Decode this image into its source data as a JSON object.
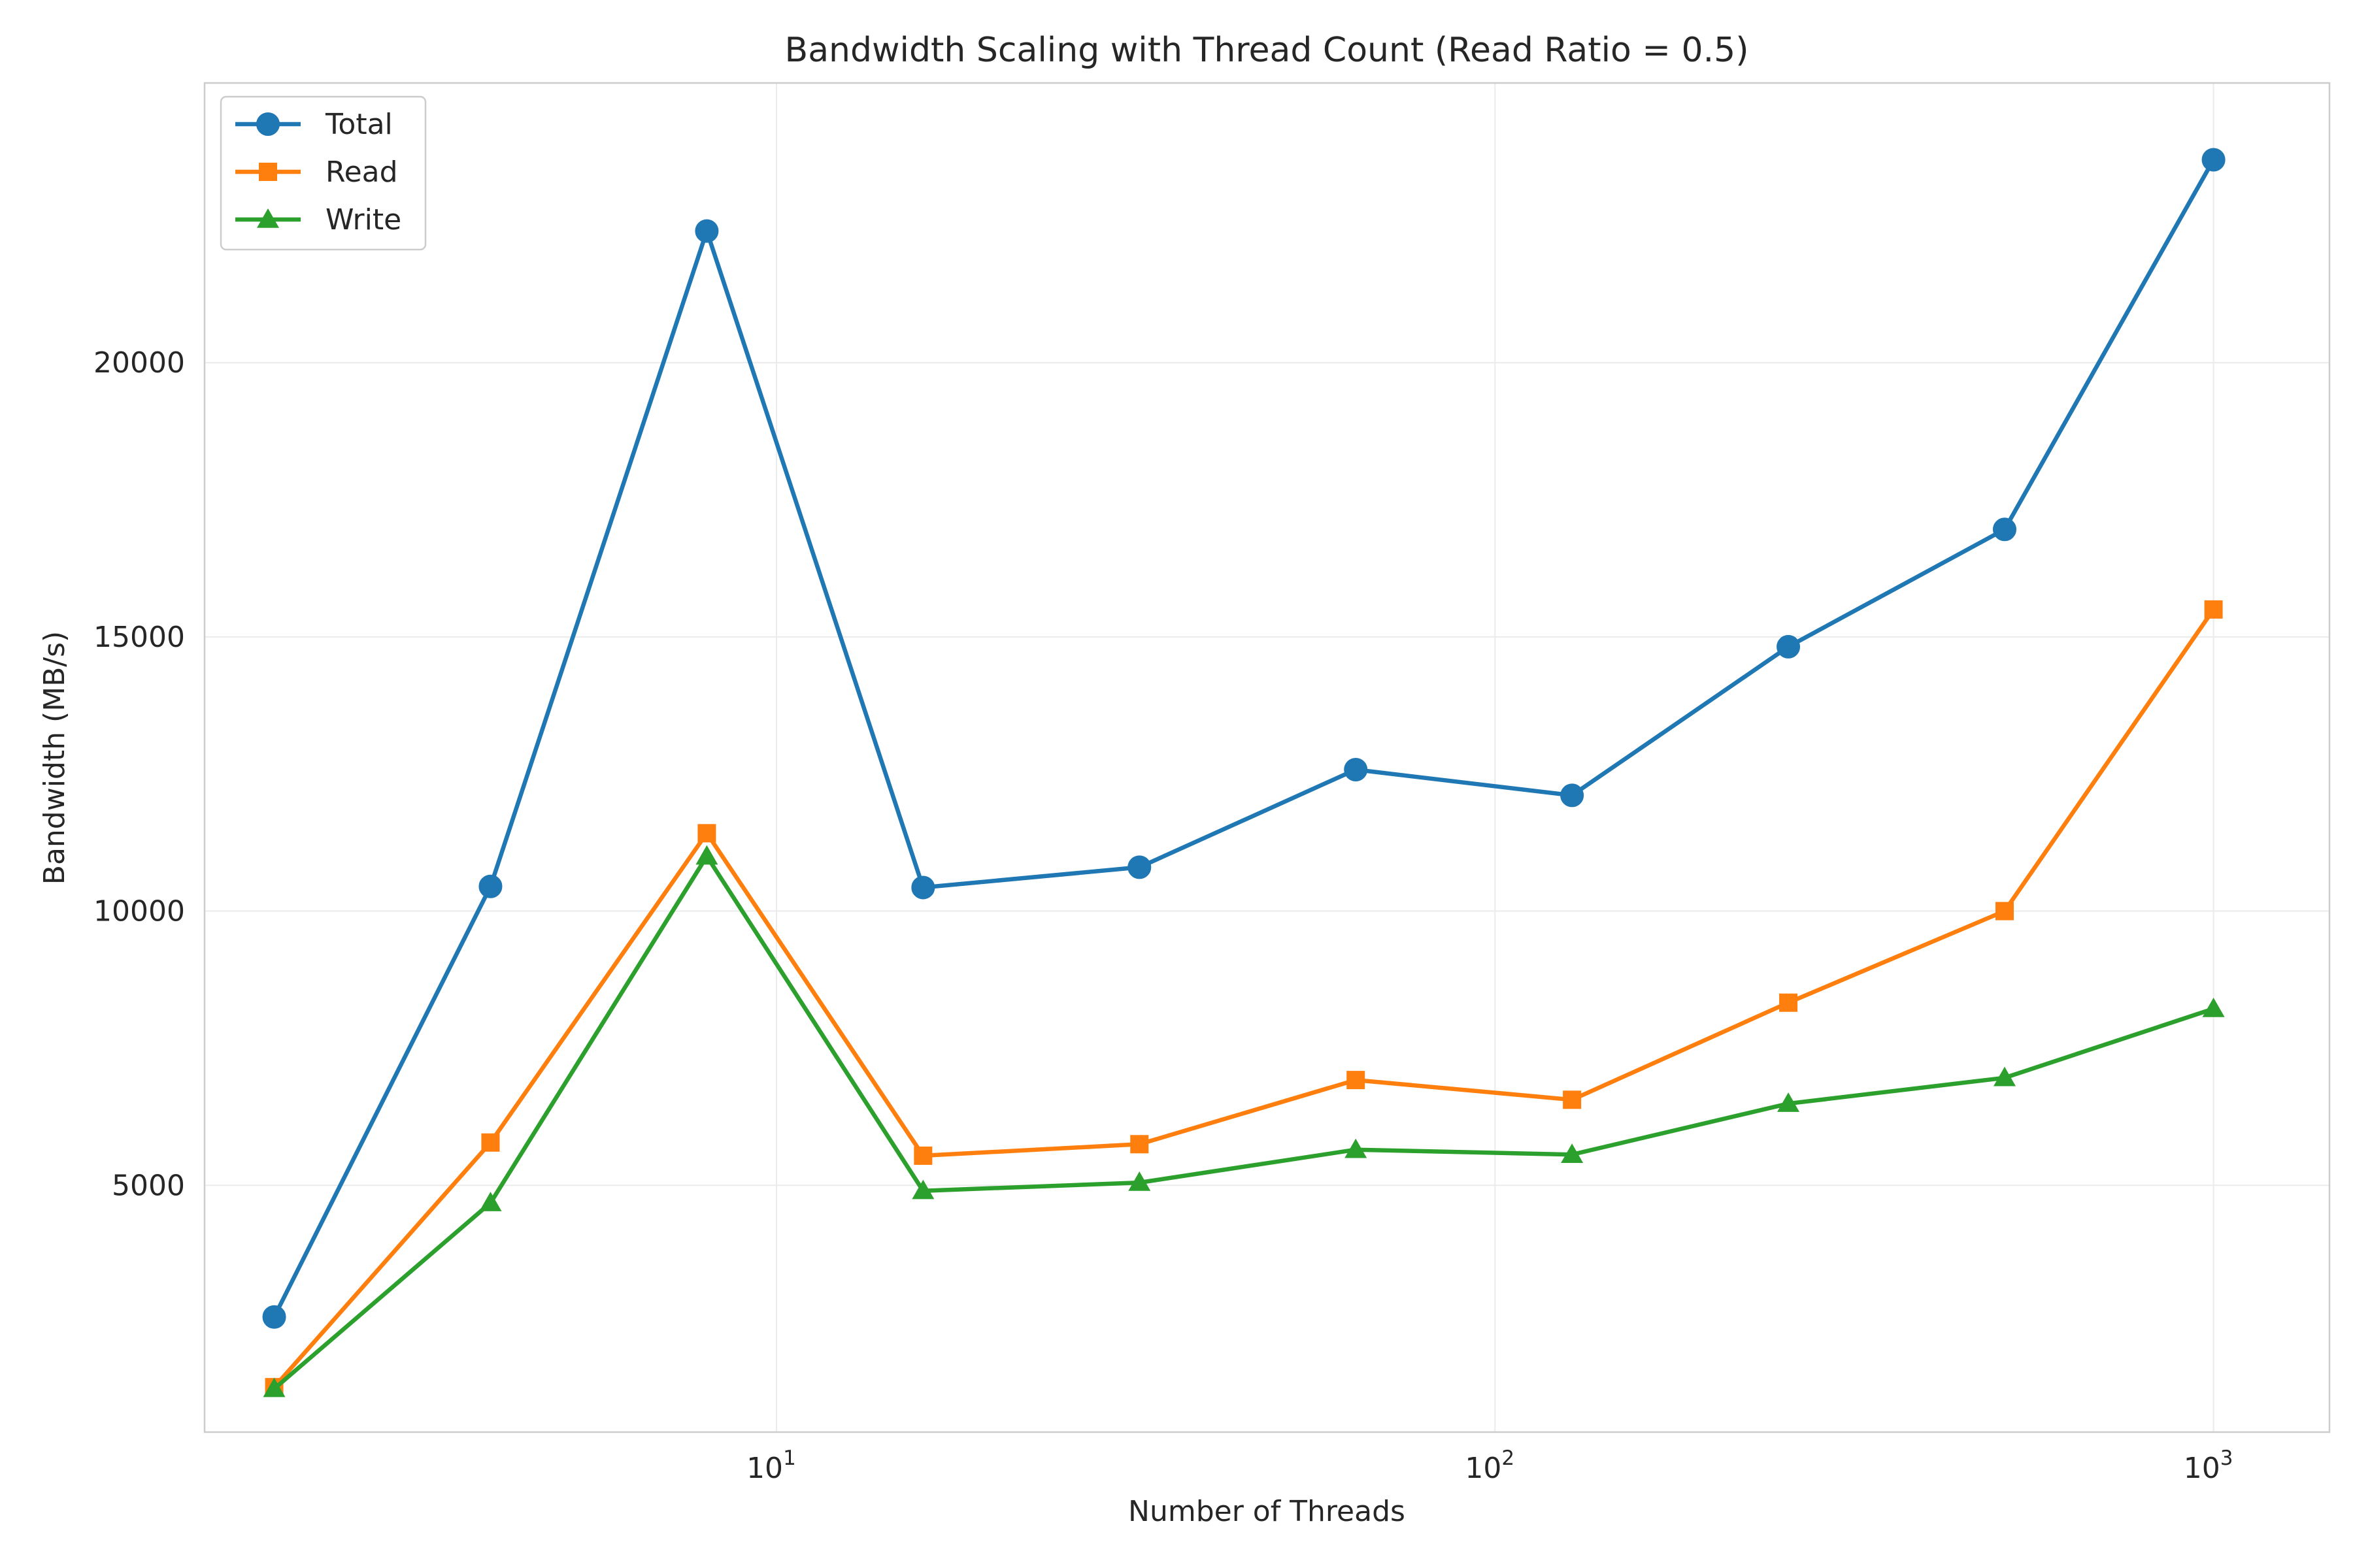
{
  "chart_data": {
    "type": "line",
    "title": "Bandwidth Scaling with Thread Count (Read Ratio = 0.5)",
    "xlabel": "Number of Threads",
    "ylabel": "Bandwidth (MB/s)",
    "xscale": "log",
    "xlim": [
      1.6,
      1450
    ],
    "ylim": [
      500,
      25100
    ],
    "grid": true,
    "legend_position": "top-left",
    "x_ticks": [
      {
        "value": 10,
        "base": "10",
        "exp": "1"
      },
      {
        "value": 100,
        "base": "10",
        "exp": "2"
      },
      {
        "value": 1000,
        "base": "10",
        "exp": "3"
      }
    ],
    "y_ticks": [
      5000,
      10000,
      15000,
      20000
    ],
    "x": [
      2,
      4,
      8,
      16,
      32,
      64,
      128,
      256,
      512,
      1000
    ],
    "series": [
      {
        "name": "Total",
        "color": "#1f77b4",
        "marker": "circle",
        "values": [
          2600,
          10450,
          22400,
          10430,
          10800,
          12580,
          12110,
          14820,
          16960,
          23700
        ]
      },
      {
        "name": "Read",
        "color": "#ff7f0e",
        "marker": "square",
        "values": [
          1320,
          5780,
          11420,
          5540,
          5750,
          6920,
          6560,
          8330,
          10000,
          15500
        ]
      },
      {
        "name": "Write",
        "color": "#2ca02c",
        "marker": "triangle",
        "values": [
          1290,
          4680,
          11000,
          4900,
          5050,
          5650,
          5560,
          6490,
          6960,
          8220
        ]
      }
    ]
  }
}
